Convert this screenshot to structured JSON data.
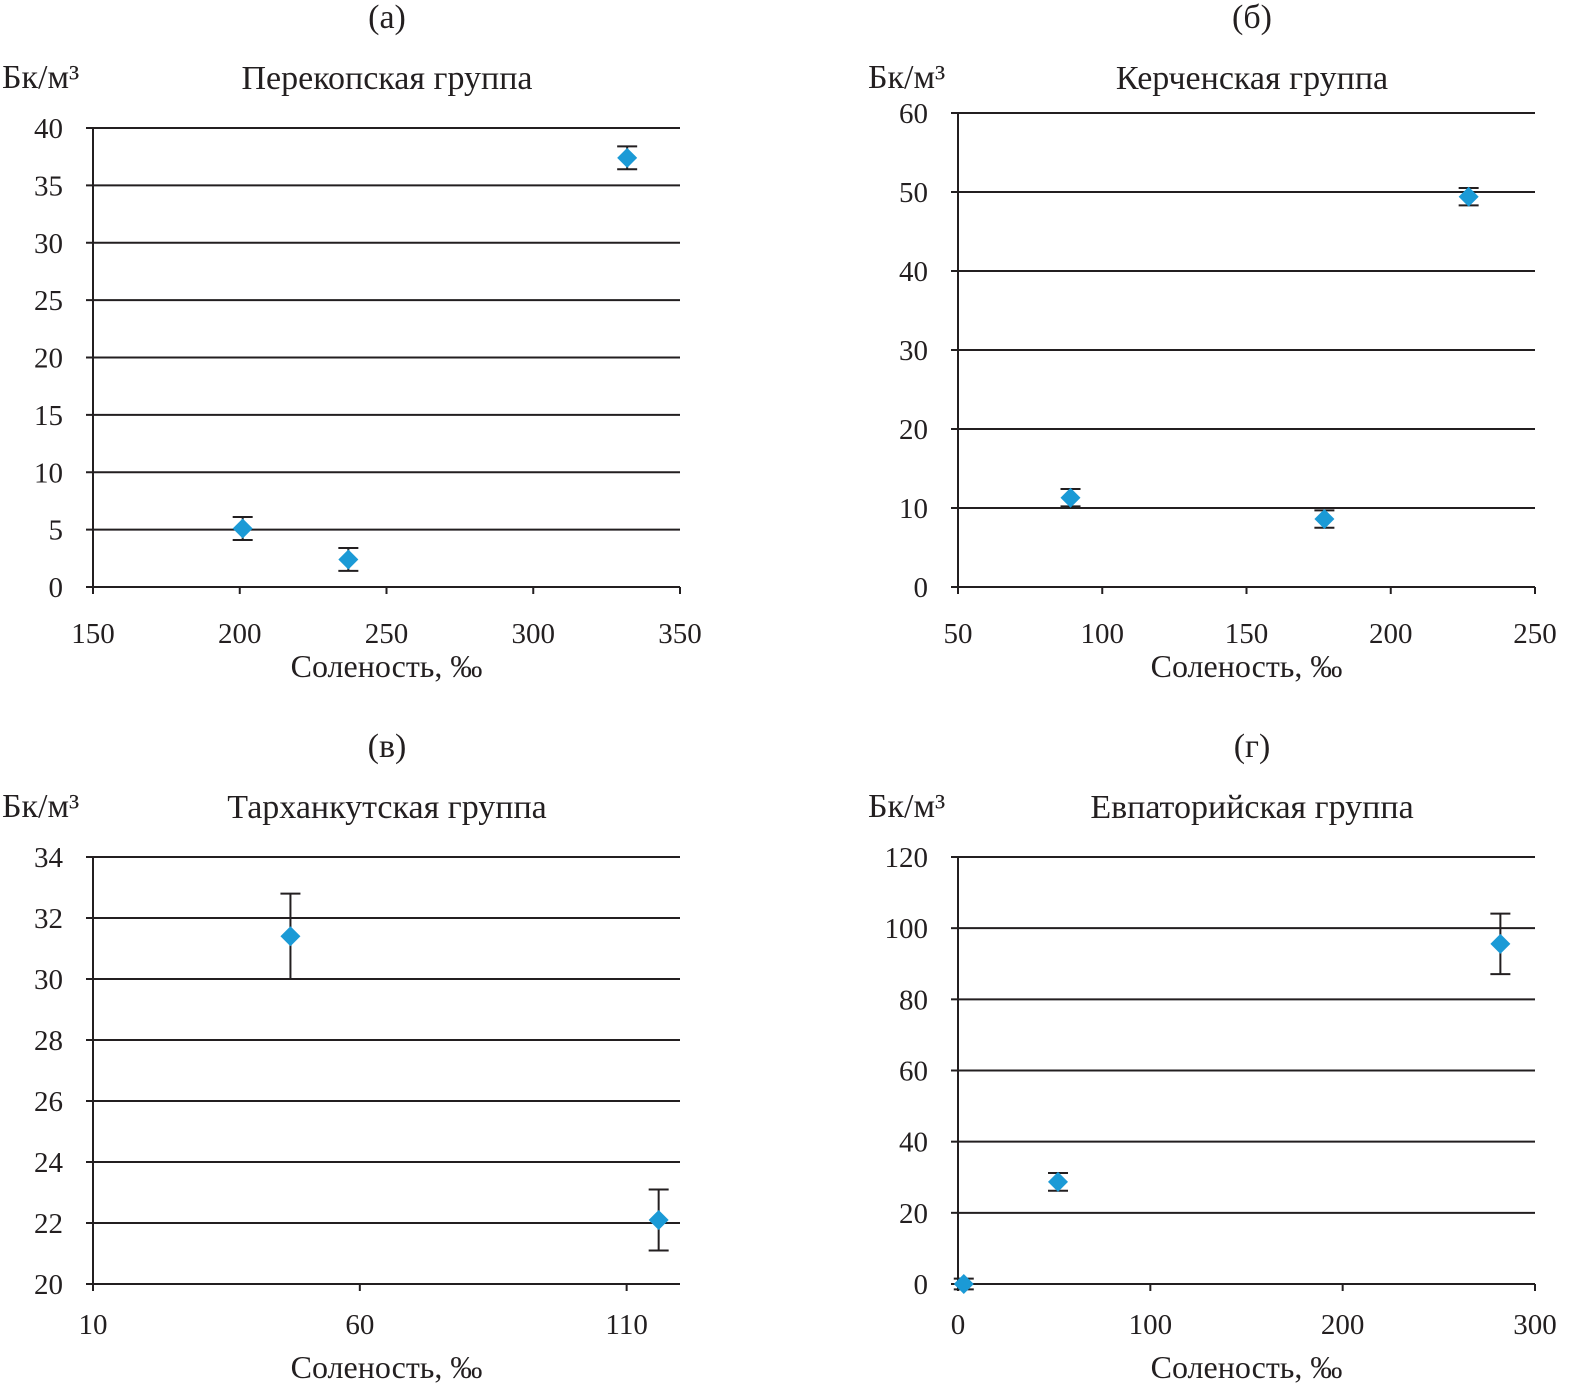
{
  "colors": {
    "marker": "#1b9ad6",
    "ink": "#231f20"
  },
  "chart_data": [
    {
      "type": "scatter",
      "panel": "(а)",
      "title": "Перекопская группа",
      "ylabel": "Бк/м³",
      "xlabel": "Соленость, ‰",
      "xlim": [
        150,
        350
      ],
      "ylim": [
        0,
        40
      ],
      "xticks": [
        150,
        200,
        250,
        300,
        350
      ],
      "yticks": [
        0,
        5,
        10,
        15,
        20,
        25,
        30,
        35,
        40
      ],
      "grid": true,
      "points": [
        {
          "x": 201,
          "y": 5.1,
          "err": 1.0
        },
        {
          "x": 237,
          "y": 2.4,
          "err": 1.0
        },
        {
          "x": 332,
          "y": 37.4,
          "err": 1.0
        }
      ]
    },
    {
      "type": "scatter",
      "panel": "(б)",
      "title": "Керченская группа",
      "ylabel": "Бк/м³",
      "xlabel": "Соленость, ‰",
      "xlim": [
        50,
        250
      ],
      "ylim": [
        0,
        60
      ],
      "xticks": [
        50,
        100,
        150,
        200,
        250
      ],
      "yticks": [
        0,
        10,
        20,
        30,
        40,
        50,
        60
      ],
      "grid": true,
      "points": [
        {
          "x": 89,
          "y": 11.3,
          "err": 1.1
        },
        {
          "x": 177,
          "y": 8.6,
          "err": 1.1
        },
        {
          "x": 227,
          "y": 49.4,
          "err": 1.1
        }
      ]
    },
    {
      "type": "scatter",
      "panel": "(в)",
      "title": "Тарханкутская группа",
      "ylabel": "Бк/м³",
      "xlabel": "Соленость, ‰",
      "xlim": [
        10,
        120
      ],
      "ylim": [
        20,
        34
      ],
      "xticks": [
        10,
        60,
        110
      ],
      "yticks": [
        20,
        22,
        24,
        26,
        28,
        30,
        32,
        34
      ],
      "grid": true,
      "points": [
        {
          "x": 47,
          "y": 31.4,
          "err": 1.4
        },
        {
          "x": 116,
          "y": 22.1,
          "err": 1.0
        }
      ]
    },
    {
      "type": "scatter",
      "panel": "(г)",
      "title": "Евпаторийская группа",
      "ylabel": "Бк/м³",
      "xlabel": "Соленость, ‰",
      "xlim": [
        0,
        300
      ],
      "ylim": [
        0,
        120
      ],
      "xticks": [
        0,
        100,
        200,
        300
      ],
      "yticks": [
        0,
        20,
        40,
        60,
        80,
        100,
        120
      ],
      "grid": true,
      "points": [
        {
          "x": 3,
          "y": 0,
          "err": 1.5
        },
        {
          "x": 52,
          "y": 28.7,
          "err": 2.5
        },
        {
          "x": 282,
          "y": 95.6,
          "err": 8.5
        }
      ]
    }
  ]
}
